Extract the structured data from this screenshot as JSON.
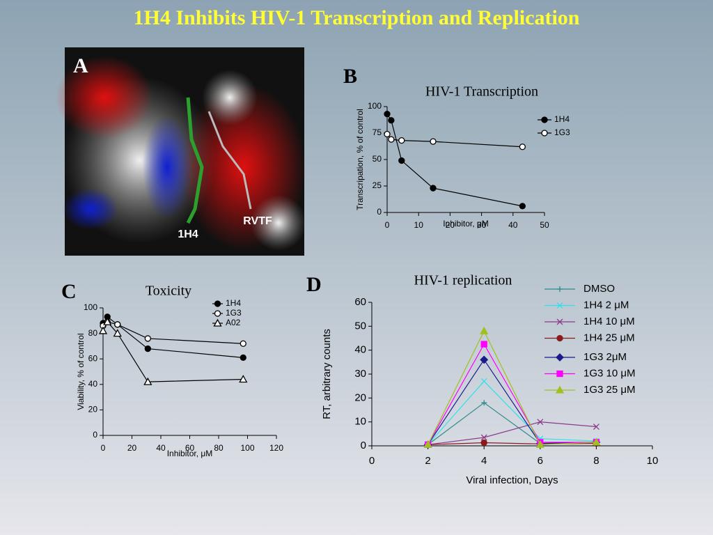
{
  "title": "1H4 Inhibits HIV-1 Transcription and Replication",
  "image": {
    "panel_label": "A",
    "annotations": [
      "1H4",
      "RVTF"
    ]
  },
  "chart_data": [
    {
      "type": "line",
      "panel_label": "B",
      "title": "HIV-1 Transcription",
      "xlabel": "Inhibitor, μM",
      "ylabel": "Transcripation,  % of control",
      "xlim": [
        0,
        50
      ],
      "xticks": [
        0,
        10,
        20,
        30,
        40,
        50
      ],
      "ylim": [
        0,
        100
      ],
      "yticks": [
        0,
        25,
        50,
        75,
        100
      ],
      "legend": "upper right",
      "series": [
        {
          "name": "1H4",
          "color": "#000000",
          "marker": "circle",
          "x": [
            0,
            1.3,
            4.6,
            14.6,
            43
          ],
          "values": [
            93,
            87,
            49,
            23,
            6
          ]
        },
        {
          "name": "1G3",
          "color": "#000000",
          "marker": "circle-open",
          "x": [
            0,
            1.3,
            4.6,
            14.6,
            43
          ],
          "values": [
            74,
            69,
            68,
            67,
            62
          ]
        }
      ]
    },
    {
      "type": "line",
      "panel_label": "C",
      "title": "Toxicity",
      "xlabel": "Inhibitor, μM",
      "ylabel": "Viability,  % of control",
      "xlim": [
        0,
        120
      ],
      "xticks": [
        0,
        20,
        40,
        60,
        80,
        100,
        120
      ],
      "ylim": [
        0,
        100
      ],
      "yticks": [
        0,
        20,
        40,
        60,
        80,
        100
      ],
      "legend": "upper right",
      "series": [
        {
          "name": "1H4",
          "color": "#000000",
          "marker": "circle",
          "x": [
            0,
            3,
            10,
            31,
            97
          ],
          "values": [
            88,
            93,
            87,
            68,
            61
          ]
        },
        {
          "name": "1G3",
          "color": "#000000",
          "marker": "circle-open",
          "x": [
            0,
            3,
            10,
            31,
            97
          ],
          "values": [
            86,
            89,
            87,
            76,
            72
          ]
        },
        {
          "name": "A02",
          "color": "#000000",
          "marker": "triangle-open",
          "x": [
            0,
            3,
            10,
            31,
            97
          ],
          "values": [
            82,
            89,
            80,
            42,
            44
          ]
        }
      ]
    },
    {
      "type": "line",
      "panel_label": "D",
      "title": "HIV-1 replication",
      "xlabel": "Viral infection, Days",
      "ylabel": "RT, arbitrary counts",
      "xlim": [
        0,
        10
      ],
      "xticks": [
        0,
        2,
        4,
        6,
        8,
        10
      ],
      "ylim": [
        0,
        60
      ],
      "yticks": [
        0,
        10,
        20,
        30,
        40,
        50,
        60
      ],
      "legend": "upper right",
      "series": [
        {
          "name": "DMSO",
          "color": "#2a8a8a",
          "marker": "plus",
          "x": [
            2,
            4,
            6,
            8
          ],
          "values": [
            0.5,
            18,
            1,
            1.5
          ]
        },
        {
          "name": "1H4 2 μM",
          "color": "#33e0e8",
          "marker": "x",
          "x": [
            2,
            4,
            6,
            8
          ],
          "values": [
            0.5,
            27,
            3,
            2
          ]
        },
        {
          "name": "1H4 10 μM",
          "color": "#8b3a8b",
          "marker": "x",
          "x": [
            2,
            4,
            6,
            8
          ],
          "values": [
            0.5,
            3.5,
            10,
            8
          ]
        },
        {
          "name": "1H4 25 μM",
          "color": "#8b1a1a",
          "marker": "circle",
          "x": [
            2,
            4,
            6,
            8
          ],
          "values": [
            0.5,
            1.3,
            0.8,
            1
          ]
        },
        {
          "name": "1G3 2μM",
          "color": "#1a1a8b",
          "marker": "diamond",
          "x": [
            2,
            4,
            6,
            8
          ],
          "values": [
            0.5,
            36,
            1,
            1.5
          ]
        },
        {
          "name": "1G3 10 μM",
          "color": "#ff00ff",
          "marker": "square",
          "x": [
            2,
            4,
            6,
            8
          ],
          "values": [
            0.5,
            42.5,
            1.5,
            1.5
          ]
        },
        {
          "name": "1G3 25 μM",
          "color": "#a0c020",
          "marker": "triangle",
          "x": [
            2,
            4,
            6,
            8
          ],
          "values": [
            0.5,
            48,
            0.5,
            1.5
          ]
        }
      ]
    }
  ]
}
